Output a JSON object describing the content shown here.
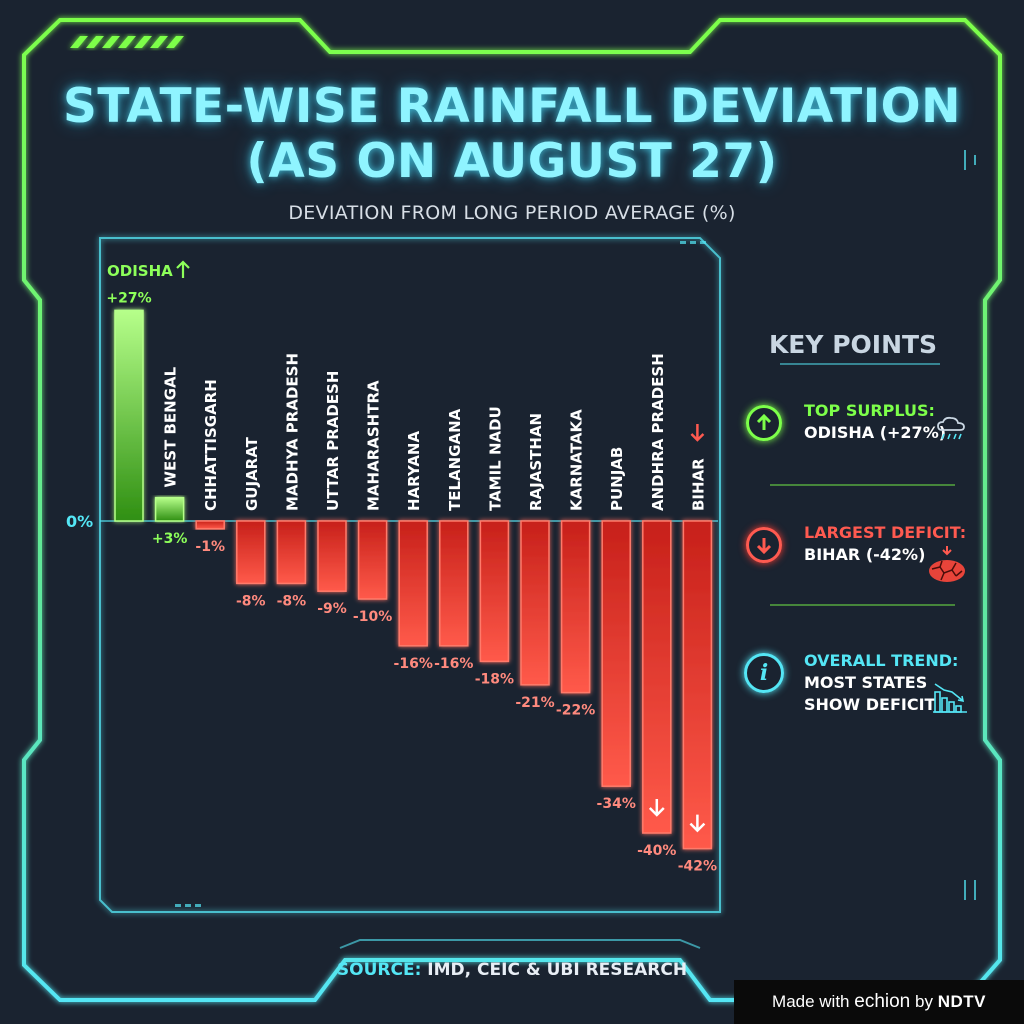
{
  "title_line1": "STATE-WISE RAINFALL DEVIATION",
  "title_line2": "(AS ON AUGUST 27)",
  "subtitle": "DEVIATION FROM LONG PERIOD AVERAGE (%)",
  "chart_data": {
    "type": "bar",
    "categories": [
      "ODISHA",
      "WEST BENGAL",
      "CHHATTISGARH",
      "GUJARAT",
      "MADHYA PRADESH",
      "UTTAR PRADESH",
      "MAHARASHTRA",
      "HARYANA",
      "TELANGANA",
      "TAMIL NADU",
      "RAJASTHAN",
      "KARNATAKA",
      "PUNJAB",
      "ANDHRA PRADESH",
      "BIHAR"
    ],
    "values": [
      27,
      3,
      -1,
      -8,
      -8,
      -9,
      -10,
      -16,
      -16,
      -18,
      -21,
      -22,
      -34,
      -40,
      -42
    ],
    "value_labels": [
      "+27%",
      "+3%",
      "-1%",
      "-8%",
      "-8%",
      "-9%",
      "-10%",
      "-16%",
      "-16%",
      "-18%",
      "-21%",
      "-22%",
      "-34%",
      "-40%",
      "-42%"
    ],
    "zero_label": "0%",
    "ylim": [
      -45,
      29
    ],
    "positive_color": "#6fe33a",
    "negative_color": "#ff3b30",
    "xlabel": "",
    "ylabel": "DEVIATION FROM LONG PERIOD AVERAGE (%)"
  },
  "key_points": {
    "heading": "KEY POINTS",
    "surplus_label": "TOP SURPLUS:",
    "surplus_value": "ODISHA (+27%)",
    "deficit_label": "LARGEST DEFICIT:",
    "deficit_value": "BIHAR (-42%)",
    "trend_label": "OVERALL TREND:",
    "trend_value_line1": "MOST STATES",
    "trend_value_line2": "SHOW DEFICIT",
    "surplus_icon": "arrow-up-icon",
    "deficit_icon": "arrow-down-icon",
    "trend_icon": "info-icon"
  },
  "source_label": "SOURCE:",
  "source_text": "IMD, CEIC & UBI RESEARCH",
  "credit": {
    "made_with": "Made with",
    "brand": "echion",
    "by": "by",
    "org": "NDTV"
  },
  "colors": {
    "background": "#1a2330",
    "frame_green": "#7dff4a",
    "frame_cyan": "#54e6f5",
    "title": "#8ff4ff"
  }
}
